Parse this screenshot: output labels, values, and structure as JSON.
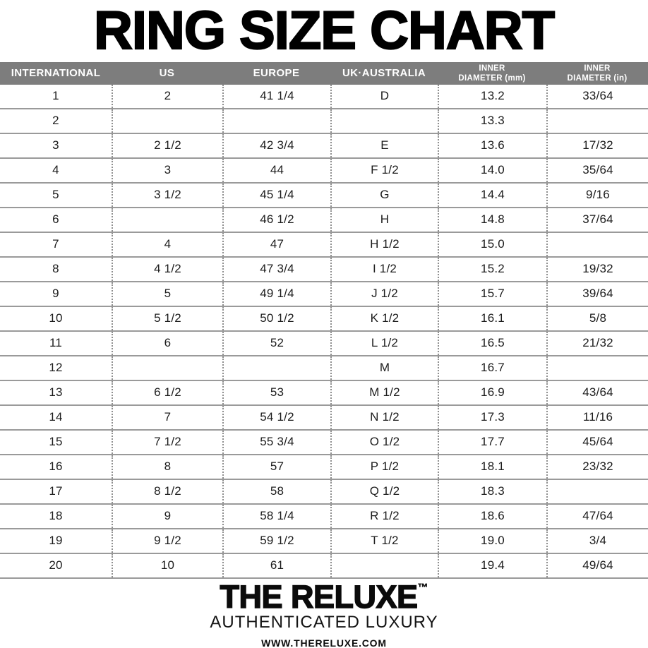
{
  "title": "RING SIZE CHART",
  "chart_data": {
    "type": "table",
    "title": "RING SIZE CHART",
    "columns": [
      "INTERNATIONAL",
      "US",
      "EUROPE",
      "UK·AUSTRALIA",
      "INNER\nDIAMETER (mm)",
      "INNER\nDIAMETER (in)"
    ],
    "rows": [
      [
        "1",
        "2",
        "41 1/4",
        "D",
        "13.2",
        "33/64"
      ],
      [
        "2",
        "",
        "",
        "",
        "13.3",
        ""
      ],
      [
        "3",
        "2 1/2",
        "42 3/4",
        "E",
        "13.6",
        "17/32"
      ],
      [
        "4",
        "3",
        "44",
        "F 1/2",
        "14.0",
        "35/64"
      ],
      [
        "5",
        "3 1/2",
        "45 1/4",
        "G",
        "14.4",
        "9/16"
      ],
      [
        "6",
        "",
        "46 1/2",
        "H",
        "14.8",
        "37/64"
      ],
      [
        "7",
        "4",
        "47",
        "H 1/2",
        "15.0",
        ""
      ],
      [
        "8",
        "4 1/2",
        "47 3/4",
        "I 1/2",
        "15.2",
        "19/32"
      ],
      [
        "9",
        "5",
        "49 1/4",
        "J 1/2",
        "15.7",
        "39/64"
      ],
      [
        "10",
        "5 1/2",
        "50 1/2",
        "K 1/2",
        "16.1",
        "5/8"
      ],
      [
        "11",
        "6",
        "52",
        "L 1/2",
        "16.5",
        "21/32"
      ],
      [
        "12",
        "",
        "",
        "M",
        "16.7",
        ""
      ],
      [
        "13",
        "6 1/2",
        "53",
        "M 1/2",
        "16.9",
        "43/64"
      ],
      [
        "14",
        "7",
        "54 1/2",
        "N 1/2",
        "17.3",
        "11/16"
      ],
      [
        "15",
        "7 1/2",
        "55 3/4",
        "O 1/2",
        "17.7",
        "45/64"
      ],
      [
        "16",
        "8",
        "57",
        "P 1/2",
        "18.1",
        "23/32"
      ],
      [
        "17",
        "8 1/2",
        "58",
        "Q 1/2",
        "18.3",
        ""
      ],
      [
        "18",
        "9",
        "58 1/4",
        "R 1/2",
        "18.6",
        "47/64"
      ],
      [
        "19",
        "9 1/2",
        "59 1/2",
        "T 1/2",
        "19.0",
        "3/4"
      ],
      [
        "20",
        "10",
        "61",
        "",
        "19.4",
        "49/64"
      ]
    ]
  },
  "footer": {
    "brand": "THE RELUXE",
    "trademark": "™",
    "tagline": "AUTHENTICATED LUXURY",
    "website": "WWW.THERELUXE.COM"
  },
  "colors": {
    "header_bg": "#7d7d7d",
    "line": "#9a9a9a",
    "dots": "#8f8f8f",
    "text": "#1c1c1c"
  }
}
